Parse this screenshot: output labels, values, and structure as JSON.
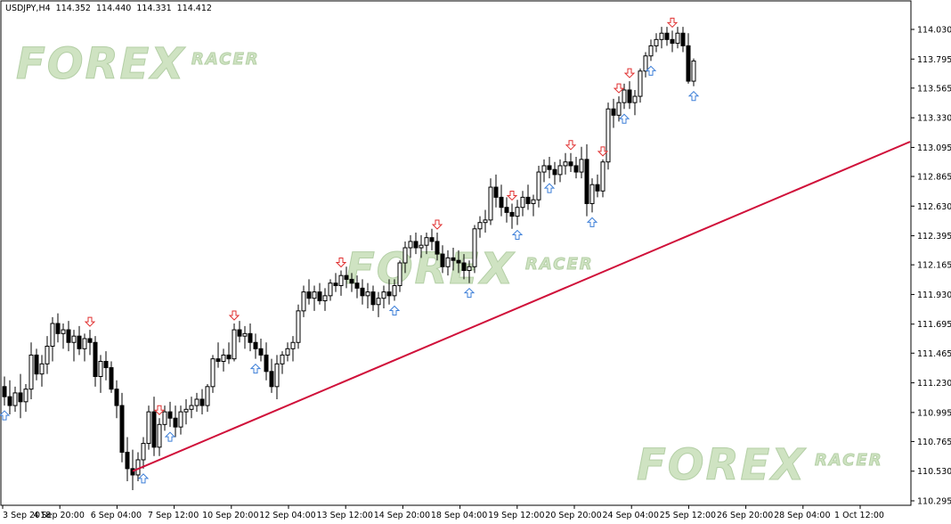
{
  "header": {
    "symbol": "USDJPY,H4",
    "open": "114.352",
    "high": "114.440",
    "low": "114.331",
    "close": "114.412"
  },
  "watermark": {
    "main": "FOREX",
    "sub": "RACER"
  },
  "colors": {
    "background": "#ffffff",
    "candle": "#000000",
    "trendline": "#d0103a",
    "arrow_up": "#3d7fd8",
    "arrow_down": "#e03030",
    "watermark": "#cfe3c2"
  },
  "icons": {
    "up_arrow": "up-arrow-icon",
    "down_arrow": "down-arrow-icon"
  },
  "chart_data": {
    "type": "candlestick",
    "symbol": "USDJPY",
    "timeframe": "H4",
    "y_ticks": [
      "114.030",
      "113.795",
      "113.565",
      "113.330",
      "113.095",
      "112.865",
      "112.630",
      "112.395",
      "112.165",
      "111.930",
      "111.695",
      "111.465",
      "111.230",
      "110.995",
      "110.765",
      "110.530",
      "110.295"
    ],
    "ylim": [
      110.25,
      114.1
    ],
    "x_ticks": [
      "3 Sep 2018",
      "4 Sep 20:00",
      "6 Sep 04:00",
      "7 Sep 12:00",
      "10 Sep 20:00",
      "12 Sep 04:00",
      "13 Sep 12:00",
      "14 Sep 20:00",
      "18 Sep 04:00",
      "19 Sep 12:00",
      "20 Sep 20:00",
      "24 Sep 04:00",
      "25 Sep 12:00",
      "26 Sep 20:00",
      "28 Sep 04:00",
      "1 Oct 12:00"
    ],
    "trendline": {
      "start": {
        "bar": 24,
        "price": 110.53
      },
      "end": {
        "bar": 168,
        "price": 113.14
      }
    },
    "arrows_up_at_bars": [
      0,
      26,
      31,
      47,
      73,
      87,
      96,
      102,
      110,
      116,
      121,
      129
    ],
    "arrows_down_at_bars": [
      16,
      29,
      43,
      63,
      81,
      95,
      106,
      112,
      115,
      117,
      125,
      133,
      135,
      160
    ],
    "candles": [
      [
        111.2,
        111.28,
        111.05,
        111.12
      ],
      [
        111.12,
        111.25,
        110.98,
        111.05
      ],
      [
        111.05,
        111.2,
        111.0,
        111.15
      ],
      [
        111.15,
        111.3,
        110.95,
        111.08
      ],
      [
        111.08,
        111.22,
        111.0,
        111.18
      ],
      [
        111.18,
        111.55,
        111.1,
        111.45
      ],
      [
        111.45,
        111.5,
        111.25,
        111.3
      ],
      [
        111.3,
        111.45,
        111.2,
        111.38
      ],
      [
        111.38,
        111.6,
        111.3,
        111.52
      ],
      [
        111.52,
        111.75,
        111.4,
        111.7
      ],
      [
        111.7,
        111.78,
        111.55,
        111.62
      ],
      [
        111.62,
        111.7,
        111.5,
        111.65
      ],
      [
        111.65,
        111.72,
        111.48,
        111.55
      ],
      [
        111.55,
        111.65,
        111.4,
        111.6
      ],
      [
        111.6,
        111.68,
        111.45,
        111.5
      ],
      [
        111.5,
        111.62,
        111.4,
        111.58
      ],
      [
        111.58,
        111.65,
        111.45,
        111.55
      ],
      [
        111.55,
        111.6,
        111.2,
        111.28
      ],
      [
        111.28,
        111.45,
        111.15,
        111.4
      ],
      [
        111.4,
        111.48,
        111.25,
        111.35
      ],
      [
        111.35,
        111.4,
        111.15,
        111.18
      ],
      [
        111.18,
        111.25,
        110.95,
        111.05
      ],
      [
        111.05,
        111.15,
        110.6,
        110.68
      ],
      [
        110.68,
        110.8,
        110.45,
        110.55
      ],
      [
        110.55,
        110.7,
        110.38,
        110.5
      ],
      [
        110.5,
        110.68,
        110.45,
        110.62
      ],
      [
        110.62,
        110.8,
        110.55,
        110.75
      ],
      [
        110.75,
        111.05,
        110.7,
        111.0
      ],
      [
        111.0,
        111.12,
        110.65,
        110.72
      ],
      [
        110.72,
        110.95,
        110.65,
        110.9
      ],
      [
        110.9,
        111.05,
        110.85,
        111.0
      ],
      [
        111.0,
        111.08,
        110.88,
        110.95
      ],
      [
        110.95,
        111.05,
        110.8,
        110.88
      ],
      [
        110.88,
        111.05,
        110.82,
        111.0
      ],
      [
        111.0,
        111.1,
        110.9,
        111.02
      ],
      [
        111.02,
        111.12,
        110.95,
        111.05
      ],
      [
        111.05,
        111.15,
        111.0,
        111.1
      ],
      [
        111.1,
        111.18,
        110.98,
        111.05
      ],
      [
        111.05,
        111.22,
        111.0,
        111.2
      ],
      [
        111.2,
        111.45,
        111.15,
        111.42
      ],
      [
        111.42,
        111.55,
        111.35,
        111.4
      ],
      [
        111.4,
        111.5,
        111.32,
        111.45
      ],
      [
        111.45,
        111.55,
        111.38,
        111.42
      ],
      [
        111.42,
        111.7,
        111.4,
        111.65
      ],
      [
        111.65,
        111.72,
        111.55,
        111.6
      ],
      [
        111.6,
        111.68,
        111.5,
        111.62
      ],
      [
        111.62,
        111.7,
        111.48,
        111.55
      ],
      [
        111.55,
        111.62,
        111.42,
        111.5
      ],
      [
        111.5,
        111.58,
        111.4,
        111.45
      ],
      [
        111.45,
        111.55,
        111.25,
        111.32
      ],
      [
        111.32,
        111.42,
        111.15,
        111.2
      ],
      [
        111.2,
        111.45,
        111.1,
        111.38
      ],
      [
        111.38,
        111.48,
        111.3,
        111.45
      ],
      [
        111.45,
        111.55,
        111.4,
        111.5
      ],
      [
        111.5,
        111.6,
        111.4,
        111.55
      ],
      [
        111.55,
        111.85,
        111.5,
        111.8
      ],
      [
        111.8,
        112.0,
        111.75,
        111.95
      ],
      [
        111.95,
        112.05,
        111.85,
        111.9
      ],
      [
        111.9,
        112.0,
        111.8,
        111.95
      ],
      [
        111.95,
        112.02,
        111.85,
        111.88
      ],
      [
        111.88,
        111.98,
        111.8,
        111.92
      ],
      [
        111.92,
        112.05,
        111.88,
        112.02
      ],
      [
        112.02,
        112.1,
        111.95,
        112.0
      ],
      [
        112.0,
        112.12,
        111.92,
        112.08
      ],
      [
        112.08,
        112.15,
        111.98,
        112.05
      ],
      [
        112.05,
        112.1,
        111.95,
        112.02
      ],
      [
        112.02,
        112.08,
        111.9,
        111.98
      ],
      [
        111.98,
        112.05,
        111.85,
        111.92
      ],
      [
        111.92,
        112.02,
        111.82,
        111.95
      ],
      [
        111.95,
        112.0,
        111.8,
        111.85
      ],
      [
        111.85,
        111.95,
        111.75,
        111.9
      ],
      [
        111.9,
        112.0,
        111.82,
        111.95
      ],
      [
        111.95,
        112.05,
        111.85,
        111.92
      ],
      [
        111.92,
        112.05,
        111.88,
        112.0
      ],
      [
        112.0,
        112.2,
        111.95,
        112.18
      ],
      [
        112.18,
        112.35,
        112.1,
        112.3
      ],
      [
        112.3,
        112.4,
        112.22,
        112.35
      ],
      [
        112.35,
        112.42,
        112.25,
        112.3
      ],
      [
        112.3,
        112.4,
        112.22,
        112.32
      ],
      [
        112.32,
        112.42,
        112.25,
        112.38
      ],
      [
        112.38,
        112.45,
        112.28,
        112.35
      ],
      [
        112.35,
        112.42,
        112.2,
        112.25
      ],
      [
        112.25,
        112.32,
        112.1,
        112.15
      ],
      [
        112.15,
        112.28,
        112.08,
        112.22
      ],
      [
        112.22,
        112.3,
        112.12,
        112.2
      ],
      [
        112.2,
        112.28,
        112.1,
        112.18
      ],
      [
        112.18,
        112.25,
        112.05,
        112.12
      ],
      [
        112.12,
        112.2,
        112.02,
        112.15
      ],
      [
        112.15,
        112.48,
        112.1,
        112.45
      ],
      [
        112.45,
        112.55,
        112.38,
        112.5
      ],
      [
        112.5,
        112.6,
        112.42,
        112.52
      ],
      [
        112.52,
        112.85,
        112.48,
        112.78
      ],
      [
        112.78,
        112.88,
        112.62,
        112.7
      ],
      [
        112.7,
        112.8,
        112.55,
        112.62
      ],
      [
        112.62,
        112.7,
        112.5,
        112.58
      ],
      [
        112.58,
        112.65,
        112.45,
        112.55
      ],
      [
        112.55,
        112.68,
        112.48,
        112.62
      ],
      [
        112.62,
        112.75,
        112.55,
        112.7
      ],
      [
        112.7,
        112.8,
        112.6,
        112.65
      ],
      [
        112.65,
        112.72,
        112.55,
        112.68
      ],
      [
        112.68,
        112.95,
        112.62,
        112.9
      ],
      [
        112.9,
        113.0,
        112.82,
        112.95
      ],
      [
        112.95,
        113.02,
        112.85,
        112.92
      ],
      [
        112.92,
        112.98,
        112.8,
        112.88
      ],
      [
        112.88,
        113.0,
        112.82,
        112.95
      ],
      [
        112.95,
        113.05,
        112.88,
        112.98
      ],
      [
        112.98,
        113.05,
        112.9,
        112.95
      ],
      [
        112.95,
        113.02,
        112.85,
        112.9
      ],
      [
        112.9,
        113.1,
        112.85,
        113.0
      ],
      [
        113.0,
        113.12,
        112.55,
        112.65
      ],
      [
        112.65,
        112.85,
        112.58,
        112.8
      ],
      [
        112.8,
        112.88,
        112.7,
        112.75
      ],
      [
        112.75,
        113.0,
        112.7,
        112.98
      ],
      [
        112.98,
        113.45,
        112.92,
        113.4
      ],
      [
        113.4,
        113.48,
        113.25,
        113.35
      ],
      [
        113.35,
        113.5,
        113.3,
        113.45
      ],
      [
        113.45,
        113.6,
        113.4,
        113.55
      ],
      [
        113.55,
        113.62,
        113.4,
        113.45
      ],
      [
        113.45,
        113.55,
        113.35,
        113.5
      ],
      [
        113.5,
        113.72,
        113.45,
        113.7
      ],
      [
        113.7,
        113.85,
        113.65,
        113.82
      ],
      [
        113.82,
        113.95,
        113.78,
        113.9
      ],
      [
        113.9,
        114.0,
        113.85,
        113.95
      ],
      [
        113.95,
        114.05,
        113.88,
        114.0
      ],
      [
        114.0,
        114.05,
        113.9,
        113.95
      ],
      [
        113.95,
        114.02,
        113.85,
        113.92
      ],
      [
        113.92,
        114.05,
        113.88,
        114.0
      ],
      [
        114.0,
        114.05,
        113.85,
        113.9
      ],
      [
        113.9,
        114.0,
        113.6,
        113.62
      ],
      [
        113.62,
        113.8,
        113.58,
        113.78
      ]
    ]
  }
}
